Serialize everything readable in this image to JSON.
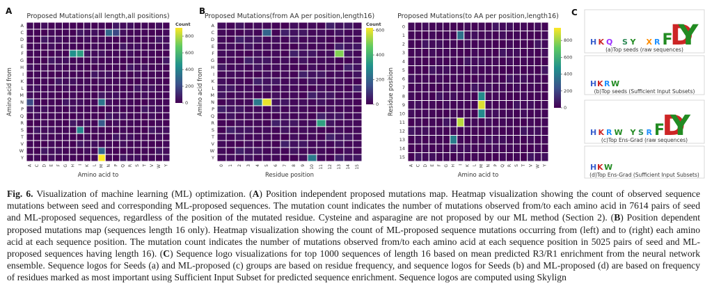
{
  "aa_order": [
    "A",
    "C",
    "D",
    "E",
    "F",
    "G",
    "H",
    "I",
    "K",
    "L",
    "M",
    "N",
    "P",
    "Q",
    "R",
    "S",
    "T",
    "V",
    "W",
    "Y"
  ],
  "panelA": {
    "letter": "A",
    "title": "Proposed Mutations(all length,all positions)",
    "xlabel": "Amino acid to",
    "ylabel": "Amino acid from",
    "cbar_label": "Count",
    "cbar_ticks": [
      0,
      200,
      400,
      600,
      800
    ],
    "vmax": 900
  },
  "panelB1": {
    "letter": "B",
    "title": "Proposed Mutations(from AA per position,length16)",
    "xlabel": "Residue position",
    "ylabel": "Amino acid from",
    "cbar_label": "Count",
    "cbar_ticks": [
      0,
      200,
      400,
      600
    ],
    "vmax": 620,
    "x_ticks": [
      "0",
      "1",
      "2",
      "3",
      "4",
      "5",
      "6",
      "7",
      "8",
      "9",
      "10",
      "11",
      "12",
      "13",
      "14",
      "15"
    ]
  },
  "panelB2": {
    "title": "Proposed Mutations(to AA per position,length16)",
    "xlabel": "Amino acid to",
    "ylabel": "Residue position",
    "cbar_ticks": [
      0,
      200,
      400,
      600,
      800
    ],
    "vmax": 950,
    "y_ticks": [
      "0",
      "1",
      "2",
      "3",
      "4",
      "5",
      "6",
      "7",
      "8",
      "9",
      "10",
      "11",
      "12",
      "13",
      "14",
      "15"
    ]
  },
  "panelC": {
    "letter": "C",
    "logos": [
      {
        "caption": "(a)Top seeds (raw sequences)",
        "letters": "HKQ SY XRFDY"
      },
      {
        "caption": "(b)Top seeds (Sufficient Input Subsets)",
        "letters": "HKRW"
      },
      {
        "caption": "(c)Top Ens-Grad (raw sequences)",
        "letters": "HKRW YSRFDY"
      },
      {
        "caption": "(d)Top Ens-Grad (Sufficient Input Subsets)",
        "letters": "HKW"
      }
    ]
  },
  "chart_data": [
    {
      "type": "heatmap",
      "title": "Proposed Mutations(all length,all positions)",
      "xlabel": "Amino acid to",
      "ylabel": "Amino acid from",
      "x": [
        "A",
        "C",
        "D",
        "E",
        "F",
        "G",
        "H",
        "I",
        "K",
        "L",
        "M",
        "N",
        "P",
        "Q",
        "R",
        "S",
        "T",
        "V",
        "W",
        "Y"
      ],
      "y": [
        "A",
        "C",
        "D",
        "E",
        "F",
        "G",
        "H",
        "I",
        "K",
        "L",
        "M",
        "N",
        "P",
        "Q",
        "R",
        "S",
        "T",
        "V",
        "W",
        "Y"
      ],
      "colorbar": "Count",
      "range": [
        0,
        900
      ],
      "cells": [
        {
          "from": "C",
          "to": "N",
          "value": 300
        },
        {
          "from": "C",
          "to": "P",
          "value": 200
        },
        {
          "from": "F",
          "to": "H",
          "value": 450
        },
        {
          "from": "F",
          "to": "I",
          "value": 500
        },
        {
          "from": "N",
          "to": "A",
          "value": 200
        },
        {
          "from": "N",
          "to": "M",
          "value": 350
        },
        {
          "from": "S",
          "to": "I",
          "value": 400
        },
        {
          "from": "Y",
          "to": "M",
          "value": 900
        },
        {
          "from": "W",
          "to": "M",
          "value": 300
        },
        {
          "from": "R",
          "to": "M",
          "value": 250
        }
      ]
    },
    {
      "type": "heatmap",
      "title": "Proposed Mutations(from AA per position,length16)",
      "xlabel": "Residue position",
      "ylabel": "Amino acid from",
      "x": [
        "0",
        "1",
        "2",
        "3",
        "4",
        "5",
        "6",
        "7",
        "8",
        "9",
        "10",
        "11",
        "12",
        "13",
        "14",
        "15"
      ],
      "y": [
        "A",
        "C",
        "D",
        "E",
        "F",
        "G",
        "H",
        "I",
        "K",
        "L",
        "M",
        "N",
        "P",
        "Q",
        "R",
        "S",
        "T",
        "V",
        "W",
        "Y"
      ],
      "colorbar": "Count",
      "range": [
        0,
        620
      ],
      "cells": [
        {
          "from": "F",
          "pos": "13",
          "value": 500
        },
        {
          "from": "N",
          "pos": "5",
          "value": 600
        },
        {
          "from": "N",
          "pos": "4",
          "value": 250
        },
        {
          "from": "R",
          "pos": "11",
          "value": 350
        },
        {
          "from": "Y",
          "pos": "10",
          "value": 250
        },
        {
          "from": "C",
          "pos": "5",
          "value": 200
        }
      ]
    },
    {
      "type": "heatmap",
      "title": "Proposed Mutations(to AA per position,length16)",
      "xlabel": "Amino acid to",
      "ylabel": "Residue position",
      "x": [
        "A",
        "C",
        "D",
        "E",
        "F",
        "G",
        "H",
        "I",
        "K",
        "L",
        "M",
        "N",
        "P",
        "Q",
        "R",
        "S",
        "T",
        "V",
        "W",
        "Y"
      ],
      "y": [
        "0",
        "1",
        "2",
        "3",
        "4",
        "5",
        "6",
        "7",
        "8",
        "9",
        "10",
        "11",
        "12",
        "13",
        "14",
        "15"
      ],
      "range": [
        0,
        950
      ],
      "cells": [
        {
          "pos": "9",
          "to": "M",
          "value": 900
        },
        {
          "pos": "11",
          "to": "I",
          "value": 850
        },
        {
          "pos": "8",
          "to": "M",
          "value": 450
        },
        {
          "pos": "10",
          "to": "M",
          "value": 450
        },
        {
          "pos": "1",
          "to": "I",
          "value": 350
        },
        {
          "pos": "13",
          "to": "H",
          "value": 400
        }
      ]
    }
  ],
  "caption": {
    "lead": "Fig. 6.",
    "parts": [
      {
        "t": " Visualization of machine learning (ML) optimization. ("
      },
      {
        "b": "A"
      },
      {
        "t": ") Position independent proposed mutations map. Heatmap visualization showing the count of observed sequence mutations between seed and corresponding ML-proposed sequences. The mutation count indicates the number of mutations observed from/to each amino acid in 7614 pairs of seed and ML-proposed sequences, regardless of the position of the mutated residue. Cysteine and asparagine are not proposed by our ML method (Section 2). ("
      },
      {
        "b": "B"
      },
      {
        "t": ") Position dependent proposed mutations map (sequences length 16 only). Heatmap visualization showing the count of ML-proposed sequence mutations occurring from (left) and to (right) each amino acid at each sequence position. The mutation count indicates the number of mutations observed from/to each amino acid at each sequence position in 5025 pairs of seed and ML-proposed sequences having length 16). ("
      },
      {
        "b": "C"
      },
      {
        "t": ") Sequence logo visualizations for top 1000 sequences of length 16 based on mean predicted R3/R1 enrichment from the neural network ensemble. Sequence logos for Seeds (a) and ML-proposed (c) groups are based on residue frequency, and sequence logos for Seeds (b) and ML-proposed (d) are based on frequency of residues marked as most important using Sufficient Input Subset for predicted sequence enrichment. Sequence logos are computed using Skylign"
      }
    ]
  }
}
